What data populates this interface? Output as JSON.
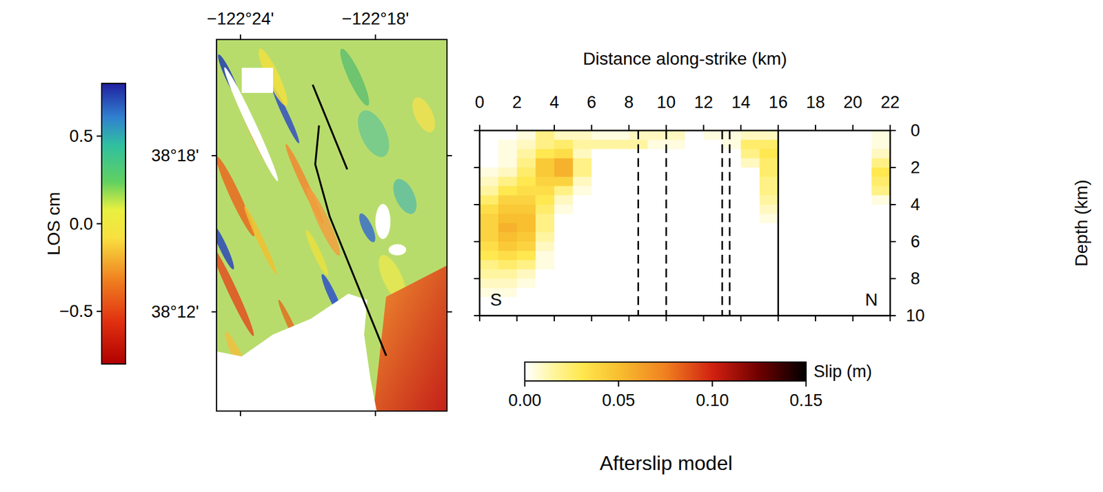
{
  "chart_data": [
    {
      "type": "map",
      "xlim": [
        -122.4177,
        -122.247
      ],
      "ylim": [
        38.1365,
        38.3743
      ],
      "xticks": [
        {
          "value": -122.4,
          "label": "−122°24'"
        },
        {
          "value": -122.3,
          "label": "−122°18'"
        }
      ],
      "yticks": [
        {
          "value": 38.3,
          "label": "38°18'"
        },
        {
          "value": 38.2,
          "label": "38°12'"
        }
      ],
      "colorbar": {
        "label": "LOS cm",
        "range": [
          -0.8,
          0.8
        ],
        "ticks": [
          {
            "value": 0.5,
            "label": "0.5"
          },
          {
            "value": 0,
            "label": "0.0"
          },
          {
            "value": -0.5,
            "label": "−0.5"
          }
        ]
      },
      "fault_traces": [
        {
          "lon": [
            -122.3465,
            -122.3209
          ],
          "lat": [
            38.3454,
            38.2912
          ]
        },
        {
          "lon": [
            -122.3418,
            -122.3446,
            -122.3339,
            -122.292
          ],
          "lat": [
            38.3193,
            38.2944,
            38.261,
            38.1719
          ]
        }
      ]
    },
    {
      "type": "heatmap",
      "title": "Afterslip model",
      "x_label": "Distance along-strike (km)",
      "y_label": "Depth (km)",
      "xlim": [
        0,
        22
      ],
      "ylim": [
        0,
        10
      ],
      "xticks": [
        0,
        2,
        4,
        6,
        8,
        10,
        12,
        14,
        16,
        18,
        20,
        22
      ],
      "yticks": [
        0,
        2,
        4,
        6,
        8,
        10
      ],
      "annotations": [
        "S",
        "N"
      ],
      "segment_boundaries": [
        {
          "x": 8.5,
          "line_style": "dashed"
        },
        {
          "x": 10,
          "line_style": "dashed"
        },
        {
          "x": 13,
          "line_style": "dashed"
        },
        {
          "x": 13.4,
          "line_style": "dashed"
        },
        {
          "x": 16,
          "line_style": "solid"
        }
      ],
      "colorbar": {
        "label": "Slip (m)",
        "range": [
          0,
          0.15
        ],
        "ticks": [
          {
            "value": 0,
            "label": "0.00"
          },
          {
            "value": 0.05,
            "label": "0.05"
          },
          {
            "value": 0.1,
            "label": "0.10"
          },
          {
            "value": 0.15,
            "label": "0.15"
          }
        ]
      },
      "x": [
        0.5,
        1.5,
        2.5,
        3.5,
        4.5,
        5.5,
        6.5,
        7.5,
        8.5,
        9.5,
        10.5,
        11.5,
        12.5,
        13.5,
        14.5,
        15.5,
        16.5,
        17.5,
        18.5,
        19.5,
        20.5,
        21.5
      ],
      "y": [
        0.25,
        0.75,
        1.25,
        1.75,
        2.25,
        2.75,
        3.25,
        3.75,
        4.25,
        4.75,
        5.25,
        5.75,
        6.25,
        6.75,
        7.25,
        7.75,
        8.25,
        8.75,
        9.25,
        9.75
      ],
      "cells": [
        [
          0,
          0,
          0.005,
          0.02,
          0.01,
          0.01,
          0.005,
          0.005,
          0.01,
          0.01,
          0.01,
          0,
          0.005,
          0.005,
          0.01,
          0.01,
          0,
          0,
          0,
          0,
          0,
          0.005
        ],
        [
          0,
          0.005,
          0.01,
          0.02,
          0.025,
          0.015,
          0.015,
          0.015,
          0.015,
          0.005,
          0.005,
          0,
          0,
          0.005,
          0.025,
          0.025,
          0,
          0,
          0,
          0,
          0,
          0.005
        ],
        [
          0,
          0.005,
          0.015,
          0.03,
          0.035,
          0.01,
          0,
          0,
          0,
          0,
          0,
          0,
          0,
          0,
          0.02,
          0.03,
          0,
          0,
          0,
          0,
          0,
          0.01
        ],
        [
          0,
          0.005,
          0.02,
          0.045,
          0.055,
          0.02,
          0,
          0,
          0,
          0,
          0,
          0,
          0,
          0,
          0.01,
          0.025,
          0,
          0,
          0,
          0,
          0,
          0.02
        ],
        [
          0.005,
          0.01,
          0.025,
          0.045,
          0.055,
          0.02,
          0,
          0,
          0,
          0,
          0,
          0,
          0,
          0,
          0,
          0.025,
          0,
          0,
          0,
          0,
          0,
          0.03
        ],
        [
          0.01,
          0.02,
          0.03,
          0.04,
          0.04,
          0.01,
          0,
          0,
          0,
          0,
          0,
          0,
          0,
          0,
          0,
          0.02,
          0,
          0,
          0,
          0,
          0,
          0.025
        ],
        [
          0.015,
          0.03,
          0.035,
          0.035,
          0.02,
          0.005,
          0,
          0,
          0,
          0,
          0,
          0,
          0,
          0,
          0,
          0.02,
          0,
          0,
          0,
          0,
          0,
          0.02
        ],
        [
          0.025,
          0.04,
          0.04,
          0.03,
          0.01,
          0,
          0,
          0,
          0,
          0,
          0,
          0,
          0,
          0,
          0,
          0.015,
          0,
          0,
          0,
          0,
          0,
          0.005
        ],
        [
          0.035,
          0.045,
          0.045,
          0.025,
          0.005,
          0,
          0,
          0,
          0,
          0,
          0,
          0,
          0,
          0,
          0,
          0.01,
          0,
          0,
          0,
          0,
          0,
          0
        ],
        [
          0.04,
          0.05,
          0.05,
          0.02,
          0,
          0,
          0,
          0,
          0,
          0,
          0,
          0,
          0,
          0,
          0,
          0.005,
          0,
          0,
          0,
          0,
          0,
          0
        ],
        [
          0.04,
          0.055,
          0.05,
          0.02,
          0,
          0,
          0,
          0,
          0,
          0,
          0,
          0,
          0,
          0,
          0,
          0,
          0,
          0,
          0,
          0,
          0,
          0
        ],
        [
          0.04,
          0.05,
          0.045,
          0.015,
          0,
          0,
          0,
          0,
          0,
          0,
          0,
          0,
          0,
          0,
          0,
          0,
          0,
          0,
          0,
          0,
          0,
          0
        ],
        [
          0.035,
          0.045,
          0.04,
          0.01,
          0,
          0,
          0,
          0,
          0,
          0,
          0,
          0,
          0,
          0,
          0,
          0,
          0,
          0,
          0,
          0,
          0,
          0
        ],
        [
          0.03,
          0.035,
          0.03,
          0.005,
          0,
          0,
          0,
          0,
          0,
          0,
          0,
          0,
          0,
          0,
          0,
          0,
          0,
          0,
          0,
          0,
          0,
          0
        ],
        [
          0.02,
          0.025,
          0.02,
          0.005,
          0,
          0,
          0,
          0,
          0,
          0,
          0,
          0,
          0,
          0,
          0,
          0,
          0,
          0,
          0,
          0,
          0,
          0
        ],
        [
          0.015,
          0.015,
          0.01,
          0,
          0,
          0,
          0,
          0,
          0,
          0,
          0,
          0,
          0,
          0,
          0,
          0,
          0,
          0,
          0,
          0,
          0,
          0
        ],
        [
          0.01,
          0.01,
          0.005,
          0,
          0,
          0,
          0,
          0,
          0,
          0,
          0,
          0,
          0,
          0,
          0,
          0,
          0,
          0,
          0,
          0,
          0,
          0
        ],
        [
          0.005,
          0.005,
          0,
          0,
          0,
          0,
          0,
          0,
          0,
          0,
          0,
          0,
          0,
          0,
          0,
          0,
          0,
          0,
          0,
          0,
          0,
          0
        ],
        [
          0,
          0,
          0,
          0,
          0,
          0,
          0,
          0,
          0,
          0,
          0,
          0,
          0,
          0,
          0,
          0,
          0,
          0,
          0,
          0,
          0,
          0
        ],
        [
          0,
          0,
          0,
          0,
          0,
          0,
          0,
          0,
          0,
          0,
          0,
          0,
          0,
          0,
          0,
          0,
          0,
          0,
          0,
          0,
          0,
          0
        ]
      ]
    }
  ]
}
